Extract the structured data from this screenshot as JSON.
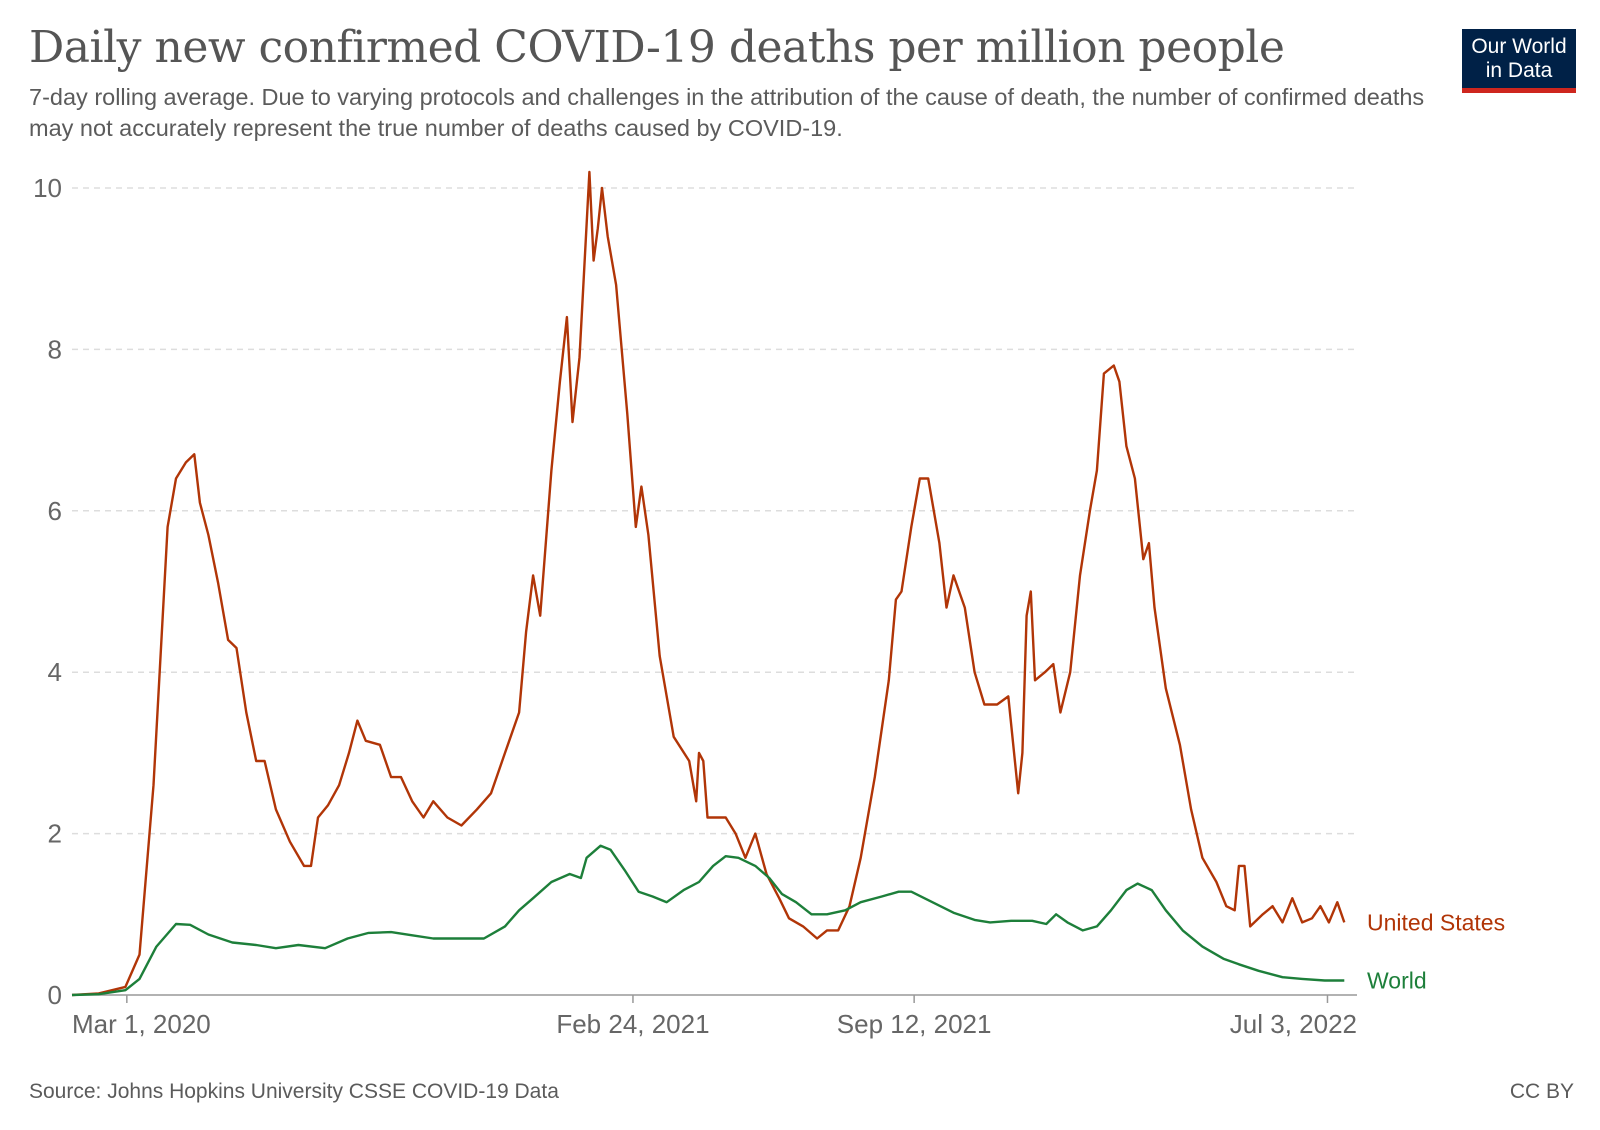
{
  "header": {
    "title": "Daily new confirmed COVID-19 deaths per million people",
    "subtitle": "7-day rolling average. Due to varying protocols and challenges in the attribution of the cause of death, the number of confirmed deaths may not accurately represent the true number of deaths caused by COVID-19.",
    "logo_line1": "Our World",
    "logo_line2": "in Data"
  },
  "footer": {
    "source": "Source: Johns Hopkins University CSSE COVID-19 Data",
    "license": "CC BY"
  },
  "colors": {
    "united_states": "#b13507",
    "world": "#1d7f3a",
    "grid": "#dddddd",
    "logo_bg": "#002147",
    "logo_accent": "#ce261e"
  },
  "chart_data": {
    "type": "line",
    "title": "Daily new confirmed COVID-19 deaths per million people",
    "x_ticks": [
      "Mar 1, 2020",
      "Feb 24, 2021",
      "Sep 12, 2021",
      "Jul 3, 2022"
    ],
    "x_range": [
      "2020-01-22",
      "2022-07-24"
    ],
    "ylim": [
      0,
      10
    ],
    "y_ticks": [
      0,
      2,
      4,
      6,
      8,
      10
    ],
    "grid": "horizontal dashed",
    "series": [
      {
        "name": "United States",
        "color": "#b13507",
        "points": [
          [
            "2020-01-22",
            0
          ],
          [
            "2020-02-10",
            0.02
          ],
          [
            "2020-02-29",
            0.1
          ],
          [
            "2020-03-10",
            0.5
          ],
          [
            "2020-03-20",
            2.6
          ],
          [
            "2020-03-30",
            5.8
          ],
          [
            "2020-04-05",
            6.4
          ],
          [
            "2020-04-12",
            6.6
          ],
          [
            "2020-04-18",
            6.7
          ],
          [
            "2020-04-22",
            6.1
          ],
          [
            "2020-04-28",
            5.7
          ],
          [
            "2020-05-05",
            5.1
          ],
          [
            "2020-05-12",
            4.4
          ],
          [
            "2020-05-18",
            4.3
          ],
          [
            "2020-05-25",
            3.5
          ],
          [
            "2020-06-01",
            2.9
          ],
          [
            "2020-06-07",
            2.9
          ],
          [
            "2020-06-15",
            2.3
          ],
          [
            "2020-06-25",
            1.9
          ],
          [
            "2020-07-05",
            1.6
          ],
          [
            "2020-07-10",
            1.6
          ],
          [
            "2020-07-15",
            2.2
          ],
          [
            "2020-07-22",
            2.35
          ],
          [
            "2020-07-30",
            2.6
          ],
          [
            "2020-08-06",
            3.0
          ],
          [
            "2020-08-12",
            3.4
          ],
          [
            "2020-08-18",
            3.15
          ],
          [
            "2020-08-28",
            3.1
          ],
          [
            "2020-09-05",
            2.7
          ],
          [
            "2020-09-12",
            2.7
          ],
          [
            "2020-09-20",
            2.4
          ],
          [
            "2020-09-28",
            2.2
          ],
          [
            "2020-10-05",
            2.4
          ],
          [
            "2020-10-15",
            2.2
          ],
          [
            "2020-10-25",
            2.1
          ],
          [
            "2020-11-05",
            2.3
          ],
          [
            "2020-11-15",
            2.5
          ],
          [
            "2020-11-25",
            3.0
          ],
          [
            "2020-12-05",
            3.5
          ],
          [
            "2020-12-10",
            4.5
          ],
          [
            "2020-12-15",
            5.2
          ],
          [
            "2020-12-20",
            4.7
          ],
          [
            "2020-12-28",
            6.5
          ],
          [
            "2021-01-03",
            7.6
          ],
          [
            "2021-01-08",
            8.4
          ],
          [
            "2021-01-12",
            7.1
          ],
          [
            "2021-01-17",
            7.9
          ],
          [
            "2021-01-24",
            10.2
          ],
          [
            "2021-01-27",
            9.1
          ],
          [
            "2021-01-30",
            9.5
          ],
          [
            "2021-02-02",
            10.0
          ],
          [
            "2021-02-06",
            9.4
          ],
          [
            "2021-02-12",
            8.8
          ],
          [
            "2021-02-20",
            7.2
          ],
          [
            "2021-02-26",
            5.8
          ],
          [
            "2021-03-02",
            6.3
          ],
          [
            "2021-03-07",
            5.7
          ],
          [
            "2021-03-15",
            4.2
          ],
          [
            "2021-03-25",
            3.2
          ],
          [
            "2021-04-05",
            2.9
          ],
          [
            "2021-04-10",
            2.4
          ],
          [
            "2021-04-12",
            3.0
          ],
          [
            "2021-04-15",
            2.9
          ],
          [
            "2021-04-18",
            2.2
          ],
          [
            "2021-05-01",
            2.2
          ],
          [
            "2021-05-08",
            2.0
          ],
          [
            "2021-05-15",
            1.7
          ],
          [
            "2021-05-22",
            2.0
          ],
          [
            "2021-05-30",
            1.5
          ],
          [
            "2021-06-08",
            1.2
          ],
          [
            "2021-06-15",
            0.95
          ],
          [
            "2021-06-25",
            0.85
          ],
          [
            "2021-07-05",
            0.7
          ],
          [
            "2021-07-12",
            0.8
          ],
          [
            "2021-07-20",
            0.8
          ],
          [
            "2021-07-28",
            1.1
          ],
          [
            "2021-08-05",
            1.7
          ],
          [
            "2021-08-15",
            2.7
          ],
          [
            "2021-08-25",
            3.9
          ],
          [
            "2021-08-30",
            4.9
          ],
          [
            "2021-09-03",
            5.0
          ],
          [
            "2021-09-10",
            5.8
          ],
          [
            "2021-09-16",
            6.4
          ],
          [
            "2021-09-22",
            6.4
          ],
          [
            "2021-09-30",
            5.6
          ],
          [
            "2021-10-05",
            4.8
          ],
          [
            "2021-10-10",
            5.2
          ],
          [
            "2021-10-18",
            4.8
          ],
          [
            "2021-10-25",
            4.0
          ],
          [
            "2021-11-01",
            3.6
          ],
          [
            "2021-11-10",
            3.6
          ],
          [
            "2021-11-18",
            3.7
          ],
          [
            "2021-11-25",
            2.5
          ],
          [
            "2021-11-28",
            3.0
          ],
          [
            "2021-12-01",
            4.7
          ],
          [
            "2021-12-04",
            5.0
          ],
          [
            "2021-12-07",
            3.9
          ],
          [
            "2021-12-14",
            4.0
          ],
          [
            "2021-12-20",
            4.1
          ],
          [
            "2021-12-25",
            3.5
          ],
          [
            "2022-01-01",
            4.0
          ],
          [
            "2022-01-08",
            5.2
          ],
          [
            "2022-01-15",
            6.0
          ],
          [
            "2022-01-20",
            6.5
          ],
          [
            "2022-01-25",
            7.7
          ],
          [
            "2022-02-01",
            7.8
          ],
          [
            "2022-02-05",
            7.6
          ],
          [
            "2022-02-10",
            6.8
          ],
          [
            "2022-02-16",
            6.4
          ],
          [
            "2022-02-22",
            5.4
          ],
          [
            "2022-02-26",
            5.6
          ],
          [
            "2022-03-02",
            4.8
          ],
          [
            "2022-03-10",
            3.8
          ],
          [
            "2022-03-20",
            3.1
          ],
          [
            "2022-03-28",
            2.3
          ],
          [
            "2022-04-05",
            1.7
          ],
          [
            "2022-04-15",
            1.4
          ],
          [
            "2022-04-22",
            1.1
          ],
          [
            "2022-04-28",
            1.05
          ],
          [
            "2022-05-01",
            1.6
          ],
          [
            "2022-05-05",
            1.6
          ],
          [
            "2022-05-09",
            0.85
          ],
          [
            "2022-05-18",
            1.0
          ],
          [
            "2022-05-25",
            1.1
          ],
          [
            "2022-06-01",
            0.9
          ],
          [
            "2022-06-08",
            1.2
          ],
          [
            "2022-06-15",
            0.9
          ],
          [
            "2022-06-22",
            0.95
          ],
          [
            "2022-06-28",
            1.1
          ],
          [
            "2022-07-04",
            0.9
          ],
          [
            "2022-07-10",
            1.15
          ],
          [
            "2022-07-15",
            0.9
          ]
        ]
      },
      {
        "name": "World",
        "color": "#1d7f3a",
        "points": [
          [
            "2020-01-22",
            0
          ],
          [
            "2020-02-10",
            0.01
          ],
          [
            "2020-02-29",
            0.06
          ],
          [
            "2020-03-10",
            0.2
          ],
          [
            "2020-03-22",
            0.6
          ],
          [
            "2020-04-05",
            0.88
          ],
          [
            "2020-04-15",
            0.87
          ],
          [
            "2020-04-28",
            0.75
          ],
          [
            "2020-05-15",
            0.65
          ],
          [
            "2020-06-01",
            0.62
          ],
          [
            "2020-06-15",
            0.58
          ],
          [
            "2020-07-01",
            0.62
          ],
          [
            "2020-07-20",
            0.58
          ],
          [
            "2020-08-05",
            0.7
          ],
          [
            "2020-08-20",
            0.77
          ],
          [
            "2020-09-05",
            0.78
          ],
          [
            "2020-09-20",
            0.74
          ],
          [
            "2020-10-05",
            0.7
          ],
          [
            "2020-10-25",
            0.7
          ],
          [
            "2020-11-10",
            0.7
          ],
          [
            "2020-11-25",
            0.85
          ],
          [
            "2020-12-05",
            1.05
          ],
          [
            "2020-12-15",
            1.2
          ],
          [
            "2020-12-28",
            1.4
          ],
          [
            "2021-01-10",
            1.5
          ],
          [
            "2021-01-18",
            1.45
          ],
          [
            "2021-01-22",
            1.7
          ],
          [
            "2021-02-01",
            1.85
          ],
          [
            "2021-02-08",
            1.8
          ],
          [
            "2021-02-18",
            1.55
          ],
          [
            "2021-02-28",
            1.28
          ],
          [
            "2021-03-10",
            1.22
          ],
          [
            "2021-03-20",
            1.15
          ],
          [
            "2021-04-01",
            1.3
          ],
          [
            "2021-04-12",
            1.4
          ],
          [
            "2021-04-22",
            1.6
          ],
          [
            "2021-05-01",
            1.72
          ],
          [
            "2021-05-10",
            1.7
          ],
          [
            "2021-05-22",
            1.6
          ],
          [
            "2021-06-01",
            1.45
          ],
          [
            "2021-06-10",
            1.25
          ],
          [
            "2021-06-20",
            1.15
          ],
          [
            "2021-07-01",
            1.0
          ],
          [
            "2021-07-12",
            1.0
          ],
          [
            "2021-07-25",
            1.05
          ],
          [
            "2021-08-05",
            1.15
          ],
          [
            "2021-08-20",
            1.22
          ],
          [
            "2021-09-01",
            1.28
          ],
          [
            "2021-09-10",
            1.28
          ],
          [
            "2021-09-25",
            1.15
          ],
          [
            "2021-10-10",
            1.02
          ],
          [
            "2021-10-25",
            0.93
          ],
          [
            "2021-11-05",
            0.9
          ],
          [
            "2021-11-20",
            0.92
          ],
          [
            "2021-12-05",
            0.92
          ],
          [
            "2021-12-15",
            0.88
          ],
          [
            "2021-12-22",
            1.0
          ],
          [
            "2021-12-30",
            0.9
          ],
          [
            "2022-01-10",
            0.8
          ],
          [
            "2022-01-20",
            0.85
          ],
          [
            "2022-01-30",
            1.05
          ],
          [
            "2022-02-10",
            1.3
          ],
          [
            "2022-02-18",
            1.38
          ],
          [
            "2022-02-28",
            1.3
          ],
          [
            "2022-03-10",
            1.05
          ],
          [
            "2022-03-22",
            0.8
          ],
          [
            "2022-04-05",
            0.6
          ],
          [
            "2022-04-20",
            0.45
          ],
          [
            "2022-05-01",
            0.38
          ],
          [
            "2022-05-15",
            0.3
          ],
          [
            "2022-06-01",
            0.22
          ],
          [
            "2022-06-15",
            0.2
          ],
          [
            "2022-07-01",
            0.18
          ],
          [
            "2022-07-15",
            0.18
          ]
        ]
      }
    ]
  }
}
